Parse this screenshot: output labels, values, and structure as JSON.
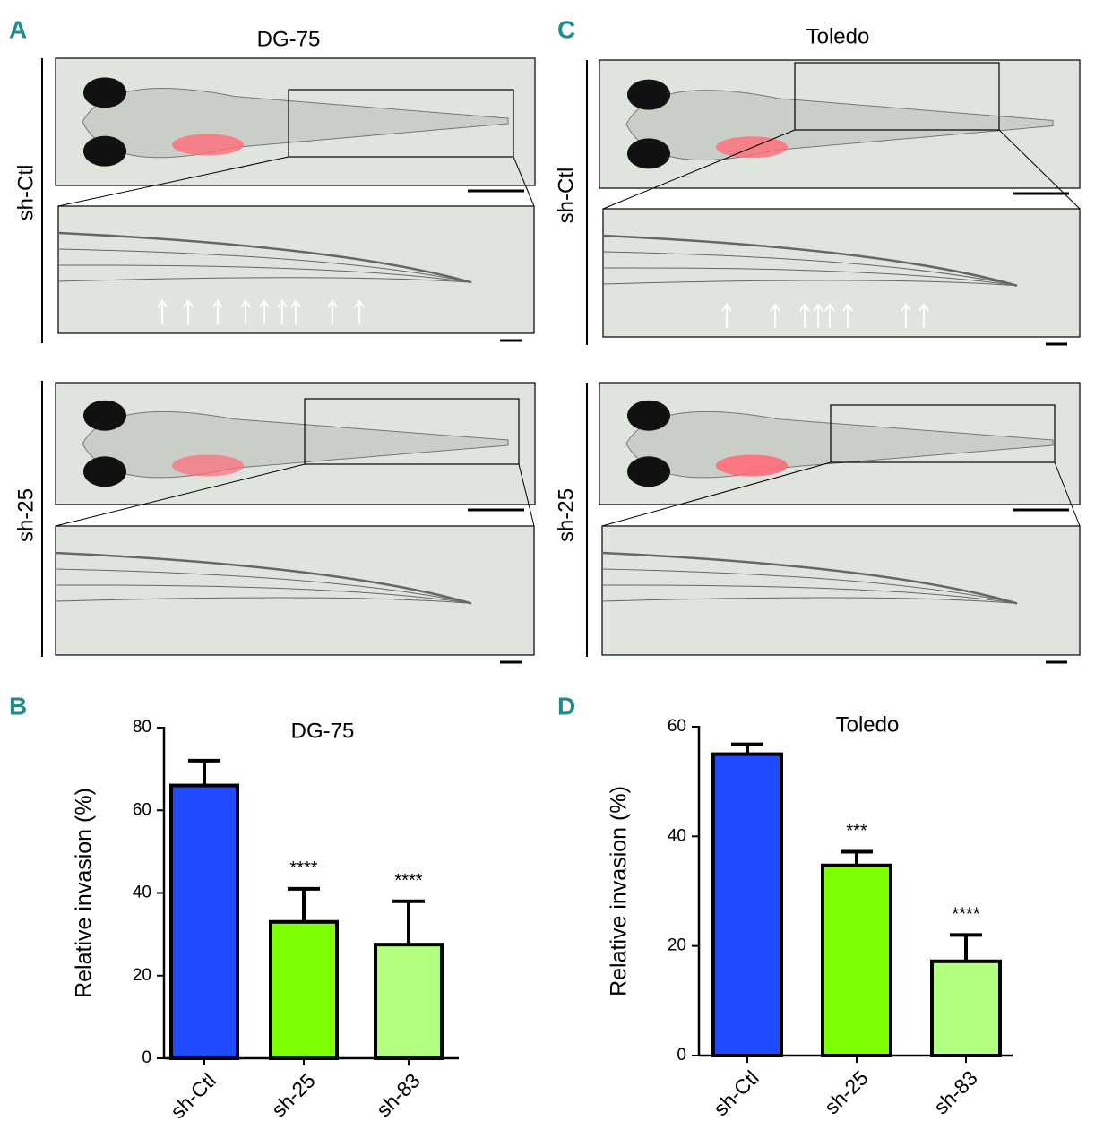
{
  "image_panels": [
    {
      "label": "A",
      "title": "DG-75",
      "rows": [
        "sh-Ctl",
        "sh-25"
      ]
    },
    {
      "label": "C",
      "title": "Toledo",
      "rows": [
        "sh-Ctl",
        "sh-25"
      ]
    }
  ],
  "chart_data": [
    {
      "type": "bar",
      "panel_label": "B",
      "title": "DG-75",
      "y_label": "Relative invasion (%)",
      "categories": [
        "sh-Ctl",
        "sh-25",
        "sh-83"
      ],
      "values": [
        66,
        33,
        27.5
      ],
      "errors": [
        6,
        8,
        10.5
      ],
      "colors": [
        "#1f4bff",
        "#7cff00",
        "#b3ff80"
      ],
      "annotations": [
        null,
        "****",
        "****"
      ],
      "ylim": [
        0,
        80
      ],
      "yticks": [
        0,
        20,
        40,
        60,
        80
      ]
    },
    {
      "type": "bar",
      "panel_label": "D",
      "title": "Toledo",
      "y_label": "Relative invasion (%)",
      "categories": [
        "sh-Ctl",
        "sh-25",
        "sh-83"
      ],
      "values": [
        55,
        34.7,
        17.2
      ],
      "errors": [
        1.8,
        2.5,
        4.8
      ],
      "colors": [
        "#1f4bff",
        "#7cff00",
        "#b3ff80"
      ],
      "annotations": [
        null,
        "***",
        "****"
      ],
      "ylim": [
        0,
        60
      ],
      "yticks": [
        0,
        20,
        40,
        60
      ]
    }
  ]
}
